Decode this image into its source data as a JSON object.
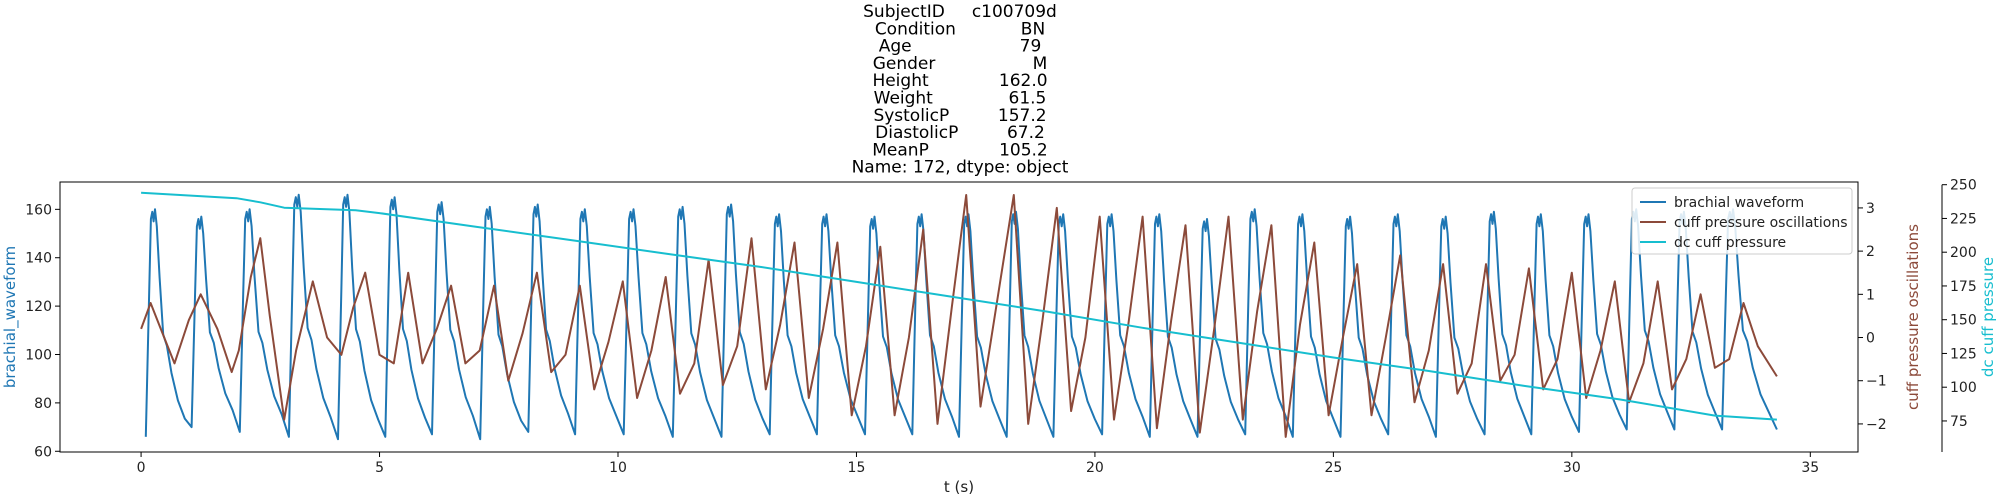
{
  "title_lines": [
    "SubjectID     c100709d",
    "Condition            BN",
    "Age                    79",
    "Gender                  M",
    "Height             162.0",
    "Weight              61.5",
    "SystolicP         157.2",
    "DiastolicP         67.2",
    "MeanP             105.2",
    "Name: 172, dtype: object"
  ],
  "chart_data": {
    "type": "line",
    "xlabel": "t (s)",
    "xlim": [
      -1.7,
      36.0
    ],
    "xticks": [
      0,
      5,
      10,
      15,
      20,
      25,
      30,
      35
    ],
    "grid": false,
    "legend_position": "upper-right",
    "axes": {
      "left": {
        "label": "brachial_waveform",
        "color": "#1f77b4",
        "ylim": [
          59.7,
          171.3
        ],
        "ticks": [
          60,
          80,
          100,
          120,
          140,
          160
        ]
      },
      "right1": {
        "label": "cuff pressure oscillations",
        "color": "#8c4a3a",
        "ylim": [
          -2.65,
          3.6
        ],
        "ticks": [
          -2,
          -1,
          0,
          1,
          2,
          3
        ]
      },
      "right2": {
        "label": "dc cuff pressure",
        "color": "#17becf",
        "ylim": [
          52,
          252
        ],
        "ticks": [
          75,
          100,
          125,
          150,
          175,
          200,
          225,
          250
        ]
      }
    },
    "series": [
      {
        "name": "brachial waveform",
        "axis": "left",
        "color": "#1f77b4",
        "beat_times": [
          0.1,
          1.06,
          2.07,
          3.1,
          4.13,
          5.12,
          6.1,
          7.11,
          8.12,
          9.1,
          10.12,
          11.15,
          12.17,
          13.18,
          14.17,
          15.18,
          16.17,
          17.15,
          18.15,
          19.13,
          20.15,
          21.15,
          22.15,
          23.15,
          24.15,
          25.15,
          26.15,
          27.15,
          28.17,
          29.15,
          30.15,
          31.15,
          32.15,
          33.15
        ],
        "peaks": [
          160,
          157,
          160,
          166,
          166,
          165,
          163,
          161,
          162,
          160,
          160,
          161,
          162,
          158,
          158,
          157,
          158,
          158,
          159,
          158,
          158,
          158,
          156,
          160,
          158,
          157,
          158,
          157,
          159,
          158,
          158,
          160,
          159,
          160
        ],
        "troughs": [
          66,
          70,
          68,
          66,
          65,
          66,
          67,
          65,
          68,
          67,
          67,
          66,
          66,
          67,
          67,
          67,
          67,
          66,
          66,
          66,
          67,
          66,
          66,
          67,
          66,
          66,
          67,
          66,
          67,
          67,
          68,
          69,
          69,
          69
        ],
        "end_time": 34.3,
        "end_value": 69
      },
      {
        "name": "cuff pressure oscillations",
        "axis": "right1",
        "color": "#8c4a3a",
        "x": [
          0.0,
          0.2,
          0.45,
          0.7,
          1.0,
          1.25,
          1.6,
          1.9,
          2.05,
          2.3,
          2.5,
          2.7,
          3.0,
          3.25,
          3.6,
          3.9,
          4.2,
          4.45,
          4.7,
          5.0,
          5.3,
          5.6,
          5.9,
          6.2,
          6.5,
          6.8,
          7.1,
          7.4,
          7.7,
          8.0,
          8.3,
          8.6,
          8.9,
          9.2,
          9.5,
          9.8,
          10.1,
          10.4,
          10.7,
          11.0,
          11.3,
          11.6,
          11.9,
          12.2,
          12.5,
          12.8,
          13.1,
          13.4,
          13.7,
          14.0,
          14.3,
          14.6,
          14.9,
          15.2,
          15.5,
          15.8,
          16.1,
          16.4,
          16.7,
          17.0,
          17.3,
          17.6,
          17.9,
          18.3,
          18.6,
          18.9,
          19.2,
          19.5,
          19.8,
          20.1,
          20.4,
          20.7,
          21.0,
          21.3,
          21.6,
          21.9,
          22.2,
          22.5,
          22.8,
          23.1,
          23.4,
          23.7,
          24.0,
          24.3,
          24.6,
          24.9,
          25.2,
          25.5,
          25.8,
          26.1,
          26.4,
          26.7,
          27.0,
          27.3,
          27.6,
          27.9,
          28.2,
          28.5,
          28.8,
          29.1,
          29.4,
          29.7,
          30.0,
          30.3,
          30.6,
          30.9,
          31.2,
          31.5,
          31.8,
          32.1,
          32.4,
          32.7,
          33.0,
          33.3,
          33.6,
          33.9,
          34.3
        ],
        "y": [
          0.2,
          0.8,
          0.1,
          -0.6,
          0.4,
          1.0,
          0.2,
          -0.8,
          -0.3,
          1.4,
          2.3,
          0.5,
          -1.9,
          -0.3,
          1.3,
          0.0,
          -0.4,
          0.7,
          1.5,
          -0.4,
          -0.6,
          1.5,
          -0.6,
          0.2,
          1.2,
          -0.6,
          -0.3,
          1.2,
          -1.0,
          0.1,
          1.5,
          -0.8,
          -0.4,
          1.2,
          -1.2,
          -0.1,
          1.3,
          -1.4,
          -0.3,
          1.4,
          -1.3,
          -0.6,
          1.8,
          -1.1,
          -0.2,
          2.3,
          -1.2,
          0.3,
          2.2,
          -1.4,
          0.2,
          2.2,
          -1.8,
          -0.2,
          2.1,
          -1.8,
          0.0,
          2.5,
          -2.0,
          0.7,
          3.3,
          -1.6,
          0.5,
          3.3,
          -2.0,
          0.4,
          3.0,
          -1.7,
          0.0,
          2.8,
          -1.9,
          0.3,
          2.8,
          -2.1,
          0.4,
          2.6,
          -2.2,
          0.2,
          2.8,
          -1.9,
          0.6,
          2.6,
          -2.3,
          0.3,
          2.2,
          -1.8,
          0.0,
          1.7,
          -1.8,
          0.0,
          1.9,
          -1.5,
          -0.3,
          1.7,
          -1.3,
          -0.6,
          1.7,
          -1.0,
          -0.4,
          1.6,
          -1.2,
          -0.5,
          1.5,
          -1.4,
          -0.3,
          1.3,
          -1.5,
          -0.6,
          1.3,
          -1.2,
          -0.5,
          1.0,
          -0.7,
          -0.5,
          0.8,
          -0.2,
          -0.9
        ]
      },
      {
        "name": "dc cuff pressure",
        "axis": "right2",
        "color": "#17becf",
        "x": [
          0,
          1,
          2,
          2.5,
          3,
          4.5,
          5,
          7,
          9,
          11,
          13,
          15,
          17,
          19,
          21,
          23,
          25,
          27,
          29,
          31,
          33,
          34.3
        ],
        "y": [
          244,
          242,
          240,
          237,
          233,
          231,
          229,
          219,
          209,
          199,
          189,
          178,
          167,
          156,
          144,
          133,
          122,
          112,
          101,
          91,
          79,
          76
        ]
      }
    ]
  }
}
